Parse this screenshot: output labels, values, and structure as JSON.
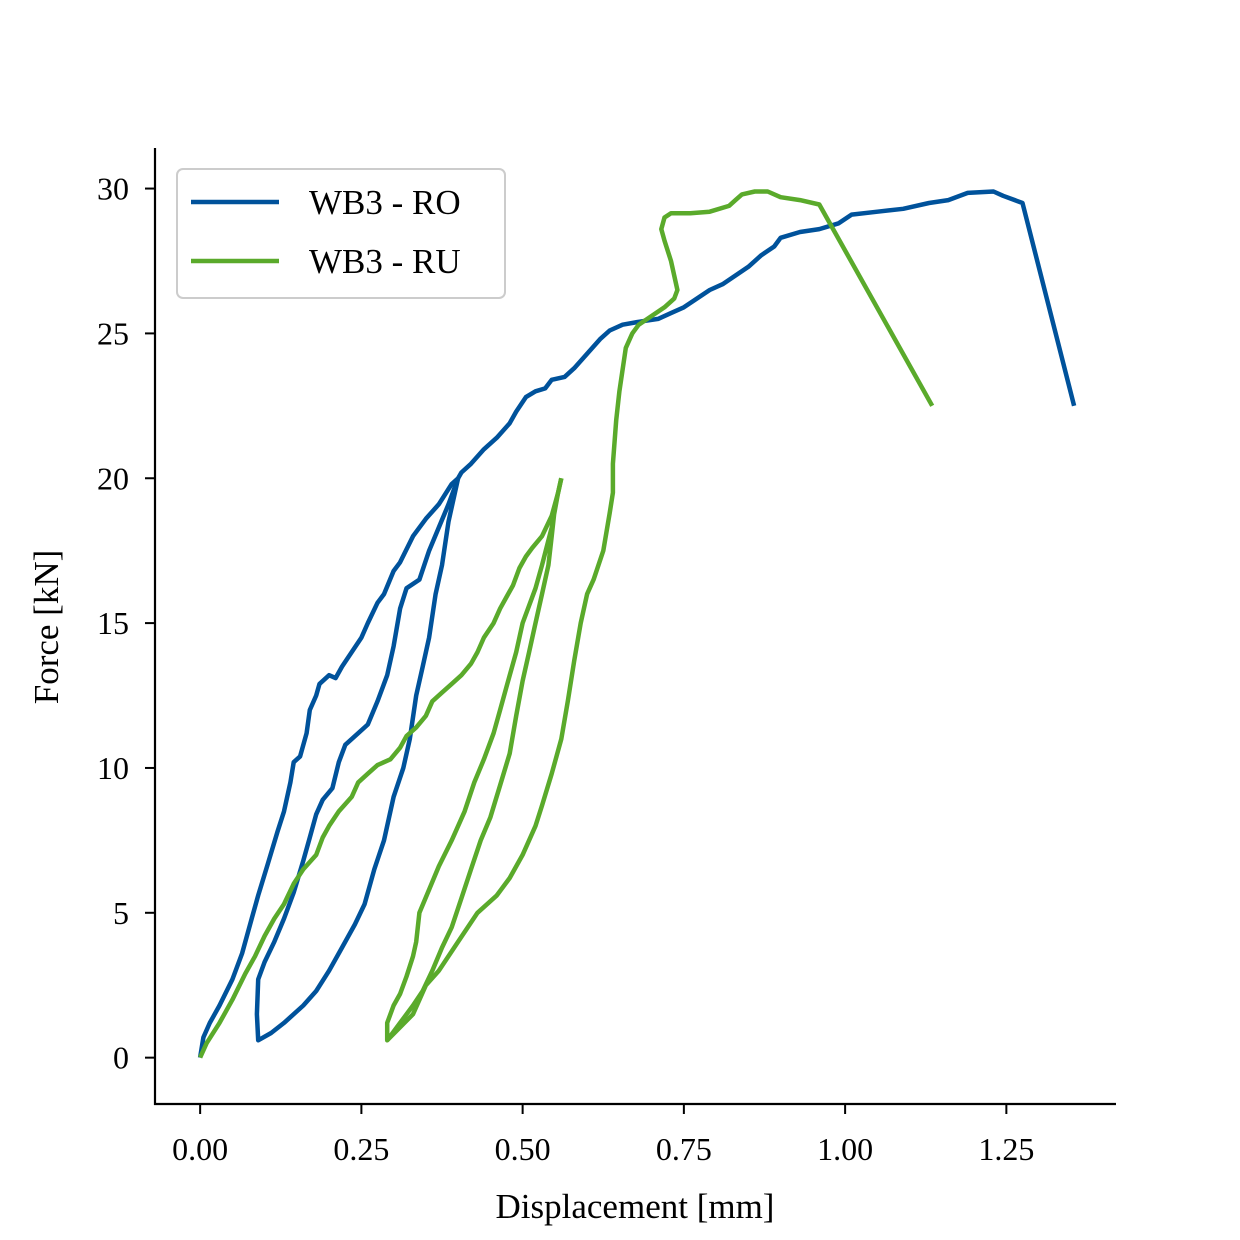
{
  "chart_data": {
    "type": "line",
    "xlabel": "Displacement [mm]",
    "ylabel": "Force [kN]",
    "xlim": [
      -0.07,
      1.42
    ],
    "ylim": [
      -1.6,
      31.4
    ],
    "xticks": [
      0.0,
      0.25,
      0.5,
      0.75,
      1.0,
      1.25
    ],
    "xtick_labels": [
      "0.00",
      "0.25",
      "0.50",
      "0.75",
      "1.00",
      "1.25"
    ],
    "yticks": [
      0,
      5,
      10,
      15,
      20,
      25,
      30
    ],
    "ytick_labels": [
      "0",
      "5",
      "10",
      "15",
      "20",
      "25",
      "30"
    ],
    "grid": false,
    "legend_position": "top-left",
    "series": [
      {
        "name": "WB3 - RO",
        "color": "#00529b",
        "points": [
          [
            0.0,
            0.0
          ],
          [
            0.005,
            0.7
          ],
          [
            0.015,
            1.2
          ],
          [
            0.03,
            1.8
          ],
          [
            0.05,
            2.7
          ],
          [
            0.065,
            3.6
          ],
          [
            0.08,
            4.8
          ],
          [
            0.09,
            5.6
          ],
          [
            0.105,
            6.7
          ],
          [
            0.12,
            7.8
          ],
          [
            0.13,
            8.5
          ],
          [
            0.14,
            9.5
          ],
          [
            0.145,
            10.2
          ],
          [
            0.155,
            10.4
          ],
          [
            0.165,
            11.2
          ],
          [
            0.17,
            12.0
          ],
          [
            0.18,
            12.5
          ],
          [
            0.185,
            12.9
          ],
          [
            0.2,
            13.2
          ],
          [
            0.21,
            13.1
          ],
          [
            0.22,
            13.5
          ],
          [
            0.235,
            14.0
          ],
          [
            0.25,
            14.5
          ],
          [
            0.26,
            15.0
          ],
          [
            0.275,
            15.7
          ],
          [
            0.285,
            16.0
          ],
          [
            0.3,
            16.8
          ],
          [
            0.31,
            17.1
          ],
          [
            0.33,
            18.0
          ],
          [
            0.35,
            18.6
          ],
          [
            0.37,
            19.1
          ],
          [
            0.39,
            19.8
          ],
          [
            0.4,
            20.0
          ],
          [
            0.405,
            20.2
          ],
          [
            0.42,
            20.5
          ],
          [
            0.44,
            21.0
          ],
          [
            0.46,
            21.4
          ],
          [
            0.48,
            21.9
          ],
          [
            0.49,
            22.3
          ],
          [
            0.505,
            22.8
          ],
          [
            0.52,
            23.0
          ],
          [
            0.535,
            23.1
          ],
          [
            0.545,
            23.4
          ],
          [
            0.565,
            23.5
          ],
          [
            0.58,
            23.8
          ],
          [
            0.6,
            24.3
          ],
          [
            0.62,
            24.8
          ],
          [
            0.635,
            25.1
          ],
          [
            0.655,
            25.3
          ],
          [
            0.68,
            25.4
          ],
          [
            0.71,
            25.5
          ],
          [
            0.73,
            25.7
          ],
          [
            0.75,
            25.9
          ],
          [
            0.77,
            26.2
          ],
          [
            0.79,
            26.5
          ],
          [
            0.81,
            26.7
          ],
          [
            0.83,
            27.0
          ],
          [
            0.85,
            27.3
          ],
          [
            0.87,
            27.7
          ],
          [
            0.89,
            28.0
          ],
          [
            0.9,
            28.3
          ],
          [
            0.93,
            28.5
          ],
          [
            0.96,
            28.6
          ],
          [
            0.99,
            28.8
          ],
          [
            1.01,
            29.1
          ],
          [
            1.05,
            29.2
          ],
          [
            1.09,
            29.3
          ],
          [
            1.13,
            29.5
          ],
          [
            1.16,
            29.6
          ],
          [
            1.19,
            29.85
          ],
          [
            1.23,
            29.9
          ],
          [
            1.245,
            29.75
          ],
          [
            1.275,
            29.5
          ],
          [
            1.355,
            22.5
          ]
        ],
        "unload": [
          [
            0.4,
            20.0
          ],
          [
            0.395,
            19.5
          ],
          [
            0.385,
            18.5
          ],
          [
            0.375,
            17.0
          ],
          [
            0.365,
            16.0
          ],
          [
            0.355,
            14.5
          ],
          [
            0.345,
            13.5
          ],
          [
            0.335,
            12.5
          ],
          [
            0.325,
            11.0
          ],
          [
            0.315,
            10.0
          ],
          [
            0.3,
            9.0
          ],
          [
            0.285,
            7.5
          ],
          [
            0.27,
            6.5
          ],
          [
            0.255,
            5.3
          ],
          [
            0.24,
            4.6
          ],
          [
            0.22,
            3.8
          ],
          [
            0.2,
            3.0
          ],
          [
            0.18,
            2.3
          ],
          [
            0.16,
            1.8
          ],
          [
            0.13,
            1.2
          ],
          [
            0.11,
            0.85
          ],
          [
            0.09,
            0.6
          ],
          [
            0.088,
            1.5
          ],
          [
            0.09,
            2.7
          ],
          [
            0.1,
            3.3
          ],
          [
            0.115,
            4.0
          ],
          [
            0.13,
            4.8
          ],
          [
            0.145,
            5.7
          ],
          [
            0.16,
            6.8
          ],
          [
            0.17,
            7.6
          ],
          [
            0.18,
            8.4
          ],
          [
            0.19,
            8.9
          ],
          [
            0.205,
            9.3
          ],
          [
            0.215,
            10.2
          ],
          [
            0.225,
            10.8
          ],
          [
            0.245,
            11.2
          ],
          [
            0.26,
            11.5
          ],
          [
            0.275,
            12.3
          ],
          [
            0.29,
            13.2
          ],
          [
            0.3,
            14.2
          ],
          [
            0.31,
            15.5
          ],
          [
            0.32,
            16.2
          ],
          [
            0.34,
            16.5
          ],
          [
            0.355,
            17.5
          ],
          [
            0.37,
            18.3
          ],
          [
            0.385,
            19.1
          ],
          [
            0.4,
            20.0
          ]
        ]
      },
      {
        "name": "WB3 - RU",
        "color": "#5aaa2b",
        "points": [
          [
            0.0,
            0.0
          ],
          [
            0.01,
            0.5
          ],
          [
            0.03,
            1.2
          ],
          [
            0.05,
            2.0
          ],
          [
            0.07,
            2.9
          ],
          [
            0.085,
            3.5
          ],
          [
            0.1,
            4.2
          ],
          [
            0.115,
            4.8
          ],
          [
            0.13,
            5.3
          ],
          [
            0.145,
            6.0
          ],
          [
            0.16,
            6.5
          ],
          [
            0.18,
            7.0
          ],
          [
            0.19,
            7.6
          ],
          [
            0.2,
            8.0
          ],
          [
            0.215,
            8.5
          ],
          [
            0.235,
            9.0
          ],
          [
            0.245,
            9.5
          ],
          [
            0.26,
            9.8
          ],
          [
            0.275,
            10.1
          ],
          [
            0.295,
            10.3
          ],
          [
            0.31,
            10.7
          ],
          [
            0.32,
            11.1
          ],
          [
            0.335,
            11.4
          ],
          [
            0.35,
            11.8
          ],
          [
            0.36,
            12.3
          ],
          [
            0.375,
            12.6
          ],
          [
            0.39,
            12.9
          ],
          [
            0.405,
            13.2
          ],
          [
            0.42,
            13.6
          ],
          [
            0.43,
            14.0
          ],
          [
            0.44,
            14.5
          ],
          [
            0.455,
            15.0
          ],
          [
            0.465,
            15.5
          ],
          [
            0.475,
            15.9
          ],
          [
            0.485,
            16.3
          ],
          [
            0.495,
            16.9
          ],
          [
            0.505,
            17.3
          ],
          [
            0.515,
            17.6
          ],
          [
            0.53,
            18.0
          ],
          [
            0.545,
            18.7
          ],
          [
            0.555,
            19.5
          ],
          [
            0.56,
            20.0
          ]
        ],
        "unload": [
          [
            0.56,
            20.0
          ],
          [
            0.55,
            19.0
          ],
          [
            0.545,
            18.0
          ],
          [
            0.54,
            17.0
          ],
          [
            0.53,
            16.0
          ],
          [
            0.52,
            15.0
          ],
          [
            0.51,
            14.0
          ],
          [
            0.5,
            13.0
          ],
          [
            0.49,
            11.8
          ],
          [
            0.48,
            10.5
          ],
          [
            0.465,
            9.4
          ],
          [
            0.45,
            8.3
          ],
          [
            0.435,
            7.5
          ],
          [
            0.42,
            6.5
          ],
          [
            0.405,
            5.5
          ],
          [
            0.39,
            4.5
          ],
          [
            0.375,
            3.8
          ],
          [
            0.36,
            3.0
          ],
          [
            0.345,
            2.3
          ],
          [
            0.33,
            1.8
          ],
          [
            0.31,
            1.2
          ],
          [
            0.29,
            0.6
          ],
          [
            0.29,
            1.2
          ],
          [
            0.3,
            1.8
          ],
          [
            0.31,
            2.2
          ],
          [
            0.32,
            2.8
          ],
          [
            0.33,
            3.5
          ],
          [
            0.335,
            4.0
          ],
          [
            0.34,
            5.0
          ],
          [
            0.355,
            5.8
          ],
          [
            0.37,
            6.6
          ],
          [
            0.39,
            7.5
          ],
          [
            0.41,
            8.5
          ],
          [
            0.425,
            9.5
          ],
          [
            0.44,
            10.3
          ],
          [
            0.455,
            11.2
          ],
          [
            0.465,
            12.0
          ],
          [
            0.475,
            12.8
          ],
          [
            0.49,
            14.0
          ],
          [
            0.5,
            15.0
          ],
          [
            0.52,
            16.2
          ],
          [
            0.53,
            17.0
          ],
          [
            0.545,
            18.3
          ],
          [
            0.555,
            19.5
          ],
          [
            0.56,
            20.0
          ]
        ],
        "reload": [
          [
            0.29,
            0.6
          ],
          [
            0.33,
            1.5
          ],
          [
            0.35,
            2.5
          ],
          [
            0.37,
            3.0
          ],
          [
            0.4,
            4.0
          ],
          [
            0.43,
            5.0
          ],
          [
            0.46,
            5.6
          ],
          [
            0.48,
            6.2
          ],
          [
            0.5,
            7.0
          ],
          [
            0.52,
            8.0
          ],
          [
            0.53,
            8.7
          ],
          [
            0.545,
            9.8
          ],
          [
            0.55,
            10.2
          ],
          [
            0.56,
            11.0
          ],
          [
            0.57,
            12.3
          ],
          [
            0.58,
            13.7
          ],
          [
            0.59,
            15.0
          ],
          [
            0.6,
            16.0
          ],
          [
            0.61,
            16.5
          ],
          [
            0.625,
            17.5
          ],
          [
            0.635,
            18.8
          ],
          [
            0.64,
            19.5
          ],
          [
            0.64,
            20.5
          ],
          [
            0.645,
            22.0
          ],
          [
            0.65,
            23.0
          ],
          [
            0.66,
            24.5
          ],
          [
            0.67,
            25.0
          ],
          [
            0.68,
            25.3
          ],
          [
            0.7,
            25.6
          ],
          [
            0.72,
            25.9
          ],
          [
            0.735,
            26.2
          ],
          [
            0.74,
            26.5
          ],
          [
            0.735,
            27.0
          ],
          [
            0.73,
            27.5
          ],
          [
            0.72,
            28.2
          ],
          [
            0.715,
            28.6
          ],
          [
            0.72,
            29.0
          ],
          [
            0.73,
            29.15
          ],
          [
            0.76,
            29.15
          ],
          [
            0.79,
            29.2
          ],
          [
            0.82,
            29.4
          ],
          [
            0.83,
            29.6
          ],
          [
            0.84,
            29.8
          ],
          [
            0.86,
            29.9
          ],
          [
            0.88,
            29.9
          ],
          [
            0.9,
            29.7
          ],
          [
            0.93,
            29.6
          ],
          [
            0.96,
            29.45
          ],
          [
            1.135,
            22.5
          ]
        ]
      }
    ]
  }
}
